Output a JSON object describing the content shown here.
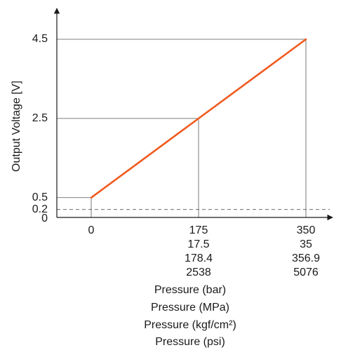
{
  "chart_data": {
    "type": "line",
    "title": "",
    "ylabel": "Output Voltage [V]",
    "xlabels": [
      "Pressure (bar)",
      "Pressure (MPa)",
      "Pressure (kgf/cm²)",
      "Pressure (psi)"
    ],
    "ylim": [
      0,
      4.5
    ],
    "xlim": [
      0,
      350
    ],
    "grid": false,
    "y_ticks": [
      {
        "value": 0,
        "label": "0"
      },
      {
        "value": 0.2,
        "label": "0.2"
      },
      {
        "value": 0.5,
        "label": "0.5"
      },
      {
        "value": 2.5,
        "label": "2.5"
      },
      {
        "value": 4.5,
        "label": "4.5"
      }
    ],
    "x_ticks": [
      {
        "value": 0,
        "labels": [
          "0"
        ]
      },
      {
        "value": 175,
        "labels": [
          "175",
          "17.5",
          "178.4",
          "2538"
        ]
      },
      {
        "value": 350,
        "labels": [
          "350",
          "35",
          "356.9",
          "5076"
        ]
      }
    ],
    "series": [
      {
        "color": "#f05a1e",
        "x": [
          0,
          175,
          350
        ],
        "y": [
          0.5,
          2.5,
          4.5
        ]
      }
    ],
    "reference_lines": [
      {
        "axis": "y",
        "value": 0.2,
        "style": "dashed"
      }
    ],
    "guide_points": [
      {
        "x": 0,
        "y": 0.5
      },
      {
        "x": 175,
        "y": 2.5
      },
      {
        "x": 350,
        "y": 4.5
      }
    ]
  }
}
